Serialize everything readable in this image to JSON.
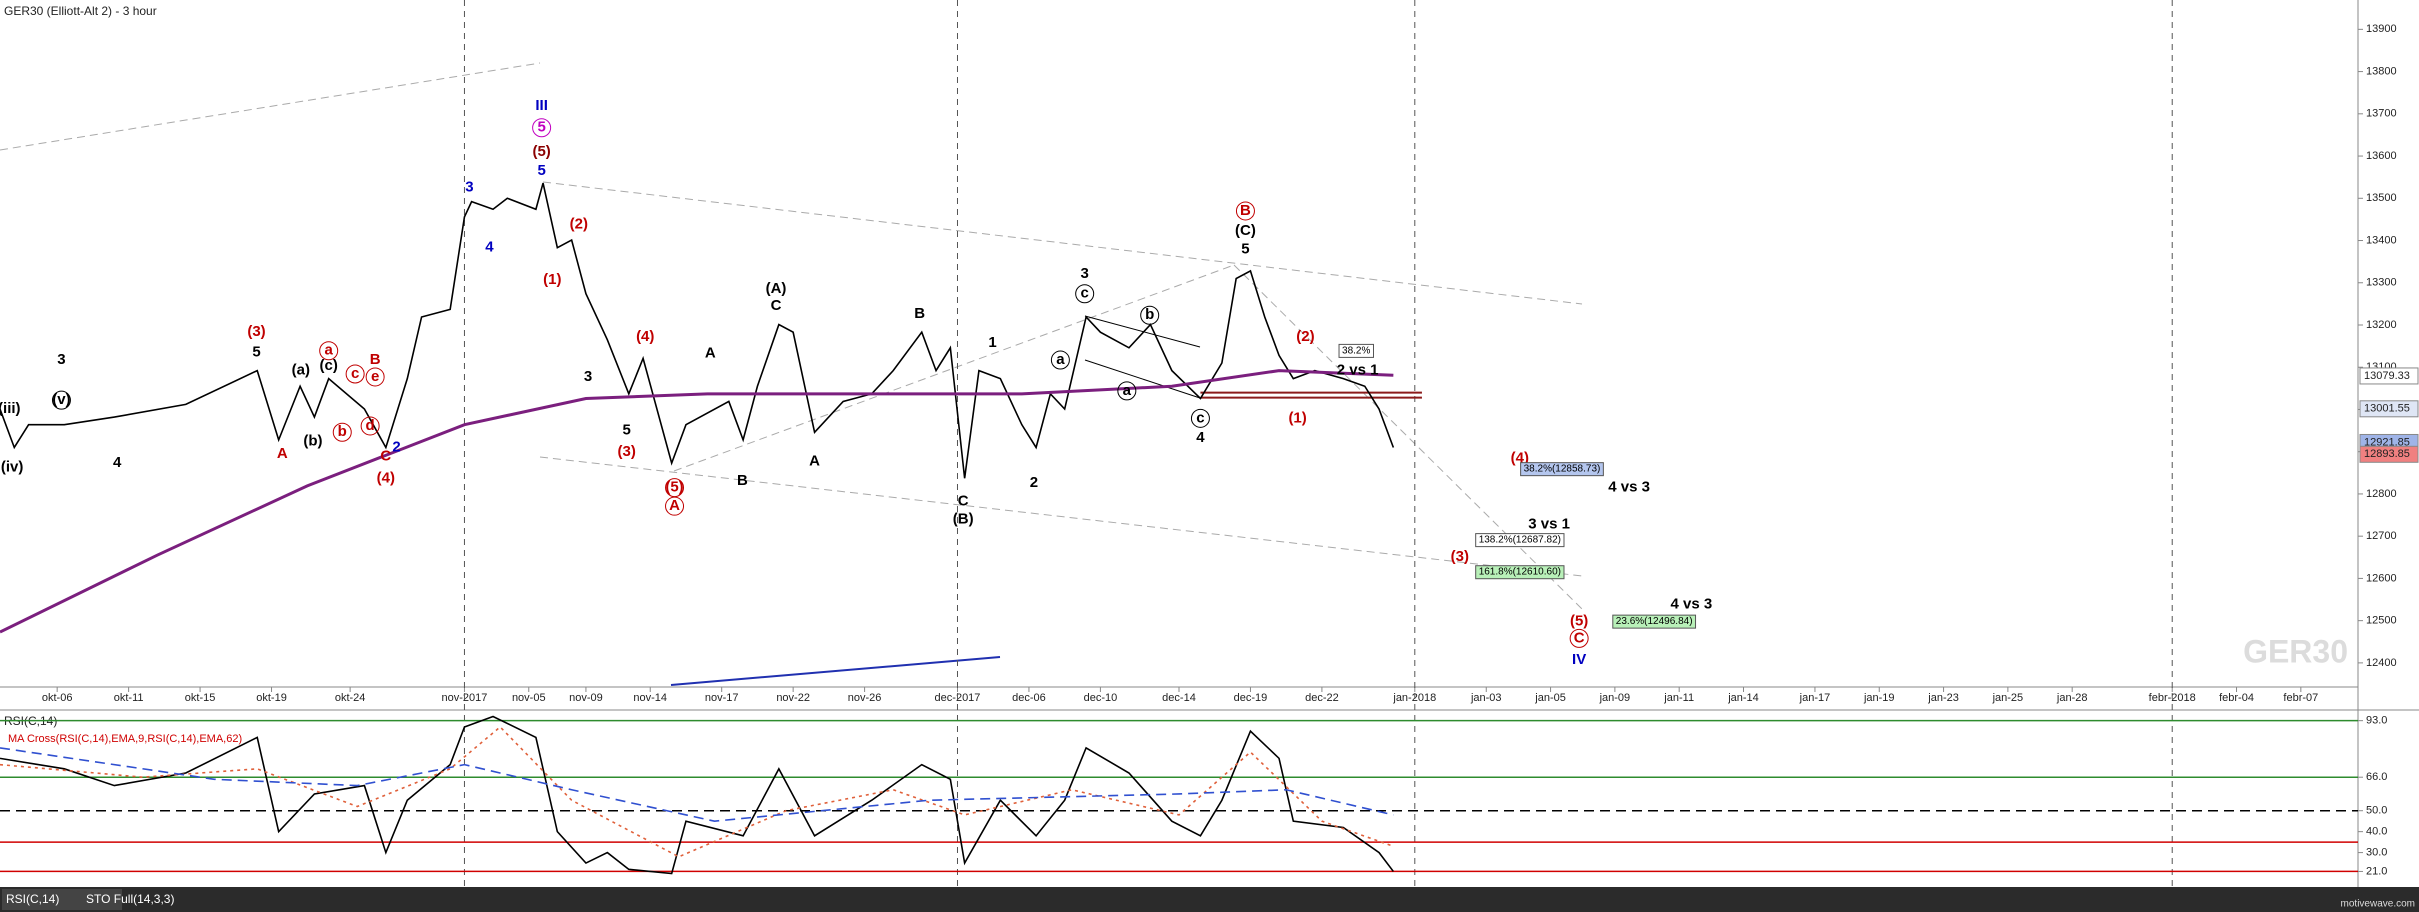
{
  "chart_data": [
    {
      "type": "line",
      "title": "GER30 (Elliott-Alt 2) - 3 hour",
      "watermark": "GER30",
      "xlim": [
        0,
        330
      ],
      "ylim": [
        12350,
        13960
      ],
      "xticks": [
        {
          "value": 8,
          "label": "okt-06"
        },
        {
          "value": 18,
          "label": "okt-11"
        },
        {
          "value": 28,
          "label": "okt-15"
        },
        {
          "value": 38,
          "label": "okt-19"
        },
        {
          "value": 49,
          "label": "okt-24"
        },
        {
          "value": 65,
          "label": "nov-2017"
        },
        {
          "value": 74,
          "label": "nov-05"
        },
        {
          "value": 82,
          "label": "nov-09"
        },
        {
          "value": 91,
          "label": "nov-14"
        },
        {
          "value": 101,
          "label": "nov-17"
        },
        {
          "value": 111,
          "label": "nov-22"
        },
        {
          "value": 121,
          "label": "nov-26"
        },
        {
          "value": 134,
          "label": "dec-2017"
        },
        {
          "value": 144,
          "label": "dec-06"
        },
        {
          "value": 154,
          "label": "dec-10"
        },
        {
          "value": 165,
          "label": "dec-14"
        },
        {
          "value": 175,
          "label": "dec-19"
        },
        {
          "value": 185,
          "label": "dec-22"
        },
        {
          "value": 198,
          "label": "jan-2018"
        },
        {
          "value": 208,
          "label": "jan-03"
        },
        {
          "value": 217,
          "label": "jan-05"
        },
        {
          "value": 226,
          "label": "jan-09"
        },
        {
          "value": 235,
          "label": "jan-11"
        },
        {
          "value": 244,
          "label": "jan-14"
        },
        {
          "value": 254,
          "label": "jan-17"
        },
        {
          "value": 263,
          "label": "jan-19"
        },
        {
          "value": 272,
          "label": "jan-23"
        },
        {
          "value": 281,
          "label": "jan-25"
        },
        {
          "value": 290,
          "label": "jan-28"
        },
        {
          "value": 304,
          "label": "febr-2018"
        },
        {
          "value": 313,
          "label": "febr-04"
        },
        {
          "value": 322,
          "label": "febr-07"
        }
      ],
      "yticks": [
        12400,
        12500,
        12600,
        12700,
        12800,
        12900,
        13000,
        13100,
        13200,
        13300,
        13400,
        13500,
        13600,
        13700,
        13800,
        13900
      ],
      "series": [
        {
          "color": "#000000",
          "x": [
            0,
            2,
            4,
            9,
            16,
            26,
            36,
            39,
            42,
            44,
            46,
            51,
            54,
            57,
            59,
            63,
            65,
            66,
            69,
            71,
            75,
            76,
            78,
            80,
            82,
            85,
            88,
            90,
            94,
            96,
            102,
            104,
            106,
            109,
            111,
            114,
            118,
            122,
            125,
            129,
            131,
            133,
            135,
            137,
            140,
            143,
            145,
            147,
            149,
            152,
            154,
            158,
            161,
            164,
            168,
            171,
            173,
            175,
            177,
            179,
            181,
            184,
            188,
            191,
            193,
            195
          ],
          "values": [
            13001,
            12910,
            12964,
            12964,
            12982,
            13012,
            13092,
            12928,
            13055,
            12982,
            13073,
            13001,
            12910,
            13073,
            13219,
            13237,
            13456,
            13492,
            13474,
            13500,
            13474,
            13536,
            13383,
            13401,
            13274,
            13165,
            13037,
            13121,
            12873,
            12964,
            13019,
            12928,
            13055,
            13201,
            13183,
            12946,
            13019,
            13037,
            13092,
            13183,
            13092,
            13146,
            12837,
            13092,
            13073,
            12964,
            12910,
            13037,
            13001,
            13219,
            13183,
            13146,
            13201,
            13092,
            13026,
            13110,
            13310,
            13328,
            13219,
            13128,
            13073,
            13092,
            13073,
            13055,
            13001,
            12910
          ]
        },
        {
          "color": "#7b1f7e",
          "width": 3,
          "x": [
            0,
            22,
            43,
            65,
            82,
            99,
            121,
            143,
            164,
            179,
            195
          ],
          "values": [
            12473,
            12655,
            12819,
            12964,
            13026,
            13037,
            13037,
            13037,
            13055,
            13092,
            13081
          ]
        }
      ],
      "levels": [
        {
          "value": 13040,
          "color": "#8b1a1a"
        },
        {
          "value": 13028,
          "color": "#8b1a1a"
        }
      ],
      "price_tags": [
        {
          "value": 13079.33,
          "fill": "#ffffff"
        },
        {
          "value": 13001.55,
          "fill": "#dfe6f5"
        },
        {
          "value": 12921.85,
          "fill": "#9fb4e8"
        },
        {
          "value": 12893.85,
          "fill": "#f08080"
        }
      ],
      "annotations": [
        {
          "text": "3",
          "x": 8.6,
          "y": 13117,
          "color": "#000"
        },
        {
          "text": "(v)",
          "x": 8.6,
          "y": 13022,
          "color": "#000",
          "style": "circle"
        },
        {
          "text": "(iii)",
          "x": 1.3,
          "y": 13001,
          "color": "#000"
        },
        {
          "text": "(iv)",
          "x": 1.7,
          "y": 12862,
          "color": "#000"
        },
        {
          "text": "4",
          "x": 16.4,
          "y": 12873,
          "color": "#000"
        },
        {
          "text": "(3)",
          "x": 35.9,
          "y": 13183,
          "color": "#c00000"
        },
        {
          "text": "5",
          "x": 35.9,
          "y": 13135,
          "color": "#000"
        },
        {
          "text": "A",
          "x": 39.5,
          "y": 12895,
          "color": "#c00000"
        },
        {
          "text": "(a)",
          "x": 42.1,
          "y": 13092,
          "color": "#000"
        },
        {
          "text": "(b)",
          "x": 43.8,
          "y": 12924,
          "color": "#000"
        },
        {
          "text": "(c)",
          "x": 46,
          "y": 13103,
          "color": "#000"
        },
        {
          "text": "a",
          "x": 46,
          "y": 13139,
          "color": "#c00000",
          "style": "circle"
        },
        {
          "text": "c",
          "x": 49.7,
          "y": 13084,
          "color": "#c00000",
          "style": "circle"
        },
        {
          "text": "b",
          "x": 47.9,
          "y": 12946,
          "color": "#c00000",
          "style": "circle"
        },
        {
          "text": "d",
          "x": 51.8,
          "y": 12961,
          "color": "#c00000",
          "style": "circle"
        },
        {
          "text": "e",
          "x": 52.5,
          "y": 13077,
          "color": "#c00000",
          "style": "circle"
        },
        {
          "text": "B",
          "x": 52.5,
          "y": 13117,
          "color": "#c00000"
        },
        {
          "text": "C",
          "x": 54,
          "y": 12888,
          "color": "#c00000"
        },
        {
          "text": "2",
          "x": 55.5,
          "y": 12910,
          "color": "#0000c0"
        },
        {
          "text": "(4)",
          "x": 54,
          "y": 12837,
          "color": "#c00000"
        },
        {
          "text": "3",
          "x": 65.7,
          "y": 13525,
          "color": "#0000c0"
        },
        {
          "text": "4",
          "x": 68.5,
          "y": 13383,
          "color": "#0000c0"
        },
        {
          "text": "III",
          "x": 75.8,
          "y": 13718,
          "color": "#0000c0"
        },
        {
          "text": "5",
          "x": 75.8,
          "y": 13667,
          "color": "#c000c0",
          "style": "circle"
        },
        {
          "text": "(5)",
          "x": 75.8,
          "y": 13609,
          "color": "#8b0000"
        },
        {
          "text": "5",
          "x": 75.8,
          "y": 13565,
          "color": "#0000c0"
        },
        {
          "text": "(2)",
          "x": 81,
          "y": 13438,
          "color": "#c00000"
        },
        {
          "text": "(1)",
          "x": 77.3,
          "y": 13307,
          "color": "#c00000"
        },
        {
          "text": "3",
          "x": 82.3,
          "y": 13077,
          "color": "#000"
        },
        {
          "text": "5",
          "x": 87.7,
          "y": 12950,
          "color": "#000"
        },
        {
          "text": "(4)",
          "x": 90.3,
          "y": 13172,
          "color": "#c00000"
        },
        {
          "text": "(3)",
          "x": 87.7,
          "y": 12899,
          "color": "#c00000"
        },
        {
          "text": "(5)",
          "x": 94.4,
          "y": 12815,
          "color": "#c00000",
          "style": "circle"
        },
        {
          "text": "A",
          "x": 94.4,
          "y": 12771,
          "color": "#c00000",
          "style": "circle"
        },
        {
          "text": "A",
          "x": 99.4,
          "y": 13132,
          "color": "#000"
        },
        {
          "text": "B",
          "x": 103.9,
          "y": 12830,
          "color": "#000"
        },
        {
          "text": "(A)",
          "x": 108.6,
          "y": 13285,
          "color": "#000"
        },
        {
          "text": "C",
          "x": 108.6,
          "y": 13245,
          "color": "#000"
        },
        {
          "text": "A",
          "x": 114,
          "y": 12877,
          "color": "#000"
        },
        {
          "text": "B",
          "x": 128.7,
          "y": 13226,
          "color": "#000"
        },
        {
          "text": "1",
          "x": 138.9,
          "y": 13157,
          "color": "#000"
        },
        {
          "text": "C",
          "x": 134.8,
          "y": 12782,
          "color": "#000"
        },
        {
          "text": "(B)",
          "x": 134.8,
          "y": 12739,
          "color": "#000"
        },
        {
          "text": "2",
          "x": 144.7,
          "y": 12826,
          "color": "#000"
        },
        {
          "text": "3",
          "x": 151.8,
          "y": 13321,
          "color": "#000"
        },
        {
          "text": "c",
          "x": 151.8,
          "y": 13274,
          "color": "#000",
          "style": "circle"
        },
        {
          "text": "a",
          "x": 148.4,
          "y": 13117,
          "color": "#000",
          "style": "circle"
        },
        {
          "text": "b",
          "x": 160.9,
          "y": 13223,
          "color": "#000",
          "style": "circle"
        },
        {
          "text": "a",
          "x": 157.7,
          "y": 13044,
          "color": "#000",
          "style": "circle"
        },
        {
          "text": "c",
          "x": 168,
          "y": 12979,
          "color": "#000",
          "style": "circle"
        },
        {
          "text": "4",
          "x": 168,
          "y": 12932,
          "color": "#000"
        },
        {
          "text": "B",
          "x": 174.3,
          "y": 13470,
          "color": "#c00000",
          "style": "circle"
        },
        {
          "text": "(C)",
          "x": 174.3,
          "y": 13423,
          "color": "#000"
        },
        {
          "text": "5",
          "x": 174.3,
          "y": 13379,
          "color": "#000"
        },
        {
          "text": "(2)",
          "x": 182.7,
          "y": 13172,
          "color": "#c00000"
        },
        {
          "text": "(1)",
          "x": 181.6,
          "y": 12979,
          "color": "#c00000"
        },
        {
          "text": "38.2%",
          "x": 189.8,
          "y": 13139,
          "color": "#000",
          "style": "box",
          "fill": "#ffffff"
        },
        {
          "text": "2 vs 1",
          "x": 190,
          "y": 13092,
          "color": "#000"
        },
        {
          "text": "(4)",
          "x": 212.7,
          "y": 12884,
          "color": "#c00000"
        },
        {
          "text": "38.2%(12858.73)",
          "x": 218.6,
          "y": 12859,
          "color": "#000",
          "style": "box",
          "fill": "#b4c6ee"
        },
        {
          "text": "4 vs 3",
          "x": 228,
          "y": 12815,
          "color": "#000"
        },
        {
          "text": "3 vs 1",
          "x": 216.8,
          "y": 12728,
          "color": "#000"
        },
        {
          "text": "138.2%(12687.82)",
          "x": 212.7,
          "y": 12691,
          "color": "#000",
          "style": "box",
          "fill": "#ffffff"
        },
        {
          "text": "(3)",
          "x": 204.3,
          "y": 12651,
          "color": "#c00000"
        },
        {
          "text": "161.8%(12610.60)",
          "x": 212.7,
          "y": 12615,
          "color": "#000",
          "style": "box",
          "fill": "#b8f0b8"
        },
        {
          "text": "4 vs 3",
          "x": 236.7,
          "y": 12538,
          "color": "#000"
        },
        {
          "text": "23.6%(12496.84)",
          "x": 231.5,
          "y": 12498,
          "color": "#000",
          "style": "box",
          "fill": "#b8f0b8"
        },
        {
          "text": "(5)",
          "x": 221,
          "y": 12498,
          "color": "#c00000"
        },
        {
          "text": "C",
          "x": 221,
          "y": 12458,
          "color": "#c00000",
          "style": "circle"
        },
        {
          "text": "IV",
          "x": 221,
          "y": 12407,
          "color": "#0000c0"
        }
      ]
    },
    {
      "type": "line",
      "title": "RSI(C,14)",
      "subtitle": "MA Cross(RSI(C,14),EMA,9,RSI(C,14),EMA,62)",
      "xlim": [
        0,
        330
      ],
      "ylim": [
        15,
        100
      ],
      "yticks": [
        {
          "value": 93,
          "label": "93.0"
        },
        {
          "value": 66,
          "label": "66.0"
        },
        {
          "value": 50,
          "label": "50.0"
        },
        {
          "value": 40,
          "label": "40.0"
        },
        {
          "value": 30,
          "label": "30.0"
        },
        {
          "value": 21,
          "label": "21.0"
        }
      ],
      "levels": [
        {
          "value": 93,
          "color": "#2e8b2e"
        },
        {
          "value": 66,
          "color": "#2e8b2e"
        },
        {
          "value": 50,
          "color": "#000000",
          "style": "dashed"
        },
        {
          "value": 35,
          "color": "#d00000"
        },
        {
          "value": 21,
          "color": "#d00000"
        }
      ],
      "series": [
        {
          "color": "#000000",
          "x": [
            0,
            9,
            16,
            26,
            36,
            39,
            44,
            51,
            54,
            57,
            63,
            65,
            69,
            75,
            78,
            82,
            85,
            88,
            94,
            96,
            104,
            109,
            114,
            122,
            129,
            133,
            135,
            140,
            145,
            149,
            152,
            158,
            164,
            168,
            171,
            175,
            179,
            181,
            188,
            193,
            195
          ],
          "values": [
            75,
            70,
            62,
            68,
            85,
            40,
            58,
            62,
            30,
            55,
            72,
            90,
            95,
            85,
            40,
            25,
            30,
            22,
            20,
            45,
            38,
            70,
            38,
            55,
            72,
            65,
            25,
            55,
            38,
            55,
            80,
            68,
            45,
            38,
            55,
            88,
            75,
            45,
            42,
            30,
            21
          ]
        },
        {
          "color": "#e0603a",
          "style": "dotted",
          "x": [
            0,
            20,
            36,
            50,
            63,
            70,
            80,
            95,
            110,
            125,
            135,
            150,
            165,
            175,
            185,
            195
          ],
          "values": [
            72,
            66,
            70,
            52,
            70,
            90,
            55,
            28,
            50,
            60,
            48,
            60,
            48,
            78,
            45,
            33
          ]
        },
        {
          "color": "#3050d0",
          "style": "dashed",
          "x": [
            0,
            30,
            50,
            65,
            80,
            100,
            130,
            165,
            180,
            195
          ],
          "values": [
            80,
            65,
            62,
            72,
            60,
            45,
            55,
            58,
            60,
            48
          ]
        }
      ]
    }
  ],
  "footer": {
    "tabs": [
      "RSI(C,14)",
      "STO Full(14,3,3)"
    ],
    "source": "motivewave.com"
  }
}
